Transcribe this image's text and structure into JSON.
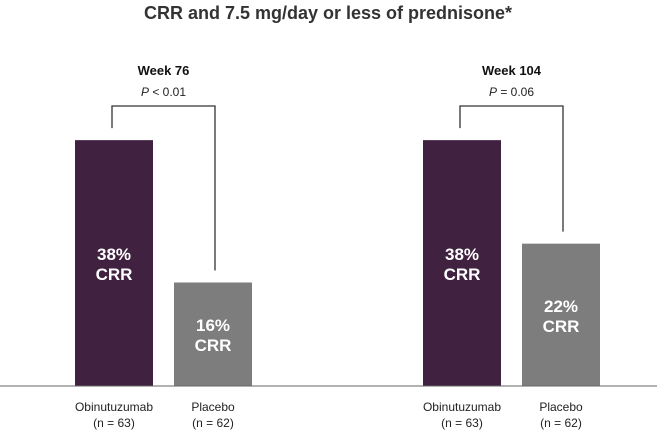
{
  "chart_data": {
    "type": "bar",
    "title": "CRR and 7.5 mg/day or less of prednisone*",
    "ylim": [
      0,
      50
    ],
    "colors": {
      "Obinutuzumab": "#40213f",
      "Placebo": "#7d7d7d"
    },
    "groups": [
      {
        "label": "Week 76",
        "p_prefix": "P",
        "p_text": " < 0.01",
        "bars": [
          {
            "category": "Obinutuzumab",
            "n_label": "(n = 63)",
            "value": 38,
            "value_label": "38%",
            "unit_label": "CRR"
          },
          {
            "category": "Placebo",
            "n_label": "(n = 62)",
            "value": 16,
            "value_label": "16%",
            "unit_label": "CRR"
          }
        ]
      },
      {
        "label": "Week 104",
        "p_prefix": "P",
        "p_text": " = 0.06",
        "bars": [
          {
            "category": "Obinutuzumab",
            "n_label": "(n = 63)",
            "value": 38,
            "value_label": "38%",
            "unit_label": "CRR"
          },
          {
            "category": "Placebo",
            "n_label": "(n = 62)",
            "value": 22,
            "value_label": "22%",
            "unit_label": "CRR"
          }
        ]
      }
    ]
  }
}
